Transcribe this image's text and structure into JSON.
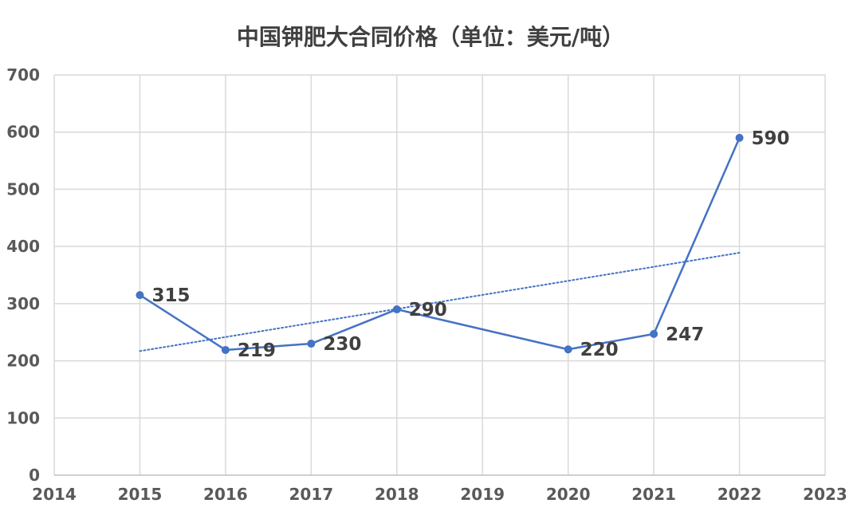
{
  "chart_data": {
    "type": "line",
    "title": "中国钾肥大合同价格（单位：美元/吨）",
    "xlabel": "",
    "ylabel": "",
    "xlim": [
      2014,
      2023
    ],
    "ylim": [
      0,
      700
    ],
    "x_ticks": [
      2014,
      2015,
      2016,
      2017,
      2018,
      2019,
      2020,
      2021,
      2022,
      2023
    ],
    "y_ticks": [
      0,
      100,
      200,
      300,
      400,
      500,
      600,
      700
    ],
    "grid": true,
    "legend": "none",
    "series": [
      {
        "x": [
          2015,
          2016,
          2017,
          2018,
          2020,
          2021,
          2022
        ],
        "y": [
          315,
          219,
          230,
          290,
          220,
          247,
          590
        ],
        "data_labels": [
          "315",
          "219",
          "230",
          "290",
          "220",
          "247",
          "590"
        ],
        "color": "#4472C4",
        "trendline": {
          "type": "linear",
          "style": "dotted",
          "x_range": [
            2015,
            2022
          ],
          "y_range": [
            217,
            389
          ]
        }
      }
    ]
  }
}
